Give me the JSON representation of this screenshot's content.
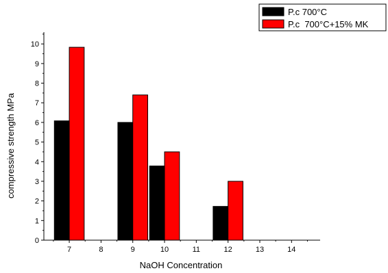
{
  "chart_data": {
    "type": "bar",
    "title": "",
    "xlabel": "NaOH Concentration",
    "ylabel": "compressive strength MPa",
    "x_ticks": [
      7,
      8,
      9,
      10,
      11,
      12,
      13,
      14
    ],
    "xlim": [
      6.2,
      14.9
    ],
    "y_ticks": [
      0,
      1,
      2,
      3,
      4,
      5,
      6,
      7,
      8,
      9,
      10
    ],
    "ylim": [
      0,
      10.6
    ],
    "grid": false,
    "legend_position": "top-right",
    "series": [
      {
        "name": "P.c 700°C",
        "color": "#000000",
        "points": [
          {
            "x": 7,
            "y": 6.08
          },
          {
            "x": 9,
            "y": 6.0
          },
          {
            "x": 10,
            "y": 3.78
          },
          {
            "x": 12,
            "y": 1.72
          }
        ]
      },
      {
        "name": "P.c  700°C+15% MK",
        "color": "#ff0000",
        "points": [
          {
            "x": 7,
            "y": 9.83
          },
          {
            "x": 9,
            "y": 7.4
          },
          {
            "x": 10,
            "y": 4.5
          },
          {
            "x": 12,
            "y": 3.0
          }
        ]
      }
    ]
  }
}
